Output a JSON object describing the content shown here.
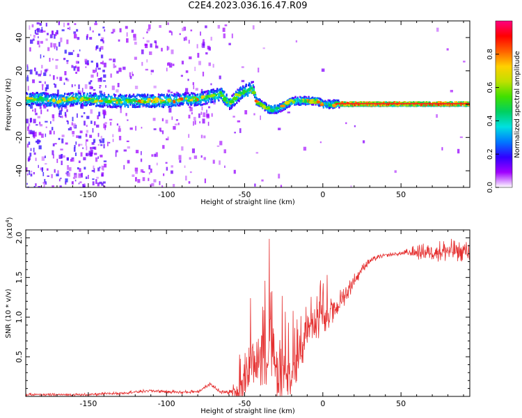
{
  "title": "C2E4.2023.036.16.47.R09",
  "chart_data": [
    {
      "type": "heatmap",
      "name": "spectrogram",
      "xlabel": "Height of straight line (km)",
      "ylabel": "Frequency (Hz)",
      "xlim": [
        -190,
        94
      ],
      "ylim": [
        -50,
        50
      ],
      "xticks": [
        -150,
        -100,
        -50,
        0,
        50
      ],
      "yticks": [
        -40,
        -20,
        0,
        20,
        40
      ],
      "grid": false,
      "ridge": {
        "x": [
          -190,
          -180,
          -170,
          -160,
          -150,
          -140,
          -130,
          -120,
          -110,
          -100,
          -90,
          -80,
          -75,
          -70,
          -65,
          -60,
          -55,
          -50,
          -47,
          -45,
          -43,
          -40,
          -35,
          -30,
          -25,
          -20,
          -15,
          -10,
          -5,
          0,
          5,
          10,
          20,
          40,
          60,
          80,
          94
        ],
        "freq": [
          3,
          3,
          2,
          3,
          3,
          2,
          2,
          2,
          2,
          2,
          3,
          3,
          4,
          5,
          6,
          0,
          5,
          8,
          9,
          10,
          2,
          0,
          -3,
          -3,
          -1,
          2,
          2,
          2,
          2,
          0,
          0,
          0,
          0,
          0,
          0,
          0,
          0
        ]
      },
      "colorbar": {
        "label": "Normalized spectral amplitude",
        "range": [
          0.0,
          1.0
        ],
        "ticks": [
          "0.0",
          "0.2",
          "0.4",
          "0.6",
          "0.8"
        ],
        "tick_values": [
          0.0,
          0.2,
          0.4,
          0.6,
          0.8
        ],
        "colors": [
          "#ffffff",
          "#a000ff",
          "#3000ff",
          "#0078ff",
          "#00e0e0",
          "#00d060",
          "#40e000",
          "#c0e000",
          "#ffd000",
          "#ff6000",
          "#ff0000",
          "#ff0080"
        ]
      }
    },
    {
      "type": "line",
      "name": "snr",
      "xlabel": "Height of straight line (km)",
      "ylabel": "SNR (10 * v/v)",
      "y_multiplier": "(x10",
      "y_multiplier_exp": "4",
      "y_multiplier_close": ")",
      "xlim": [
        -190,
        94
      ],
      "ylim": [
        0,
        2.1
      ],
      "xticks": [
        -150,
        -100,
        -50,
        0,
        50
      ],
      "yticks": [
        0.5,
        1.0,
        1.5,
        2.0
      ],
      "ytick_labels": [
        "0.5",
        "1.0",
        "1.5",
        "2.0"
      ],
      "color": "#e53030",
      "grid": false,
      "series": [
        {
          "name": "SNR",
          "envelope_x": [
            -190,
            -150,
            -130,
            -110,
            -100,
            -90,
            -80,
            -72,
            -65,
            -55,
            -50,
            -45,
            -40,
            -35,
            -30,
            -25,
            -20,
            -15,
            -10,
            -5,
            0,
            5,
            10,
            15,
            20,
            25,
            30,
            35,
            40,
            50,
            60,
            70,
            80,
            94
          ],
          "envelope_y": [
            0.02,
            0.02,
            0.04,
            0.07,
            0.06,
            0.05,
            0.06,
            0.15,
            0.05,
            0.05,
            0.12,
            0.38,
            0.45,
            0.5,
            0.35,
            0.25,
            0.2,
            0.5,
            0.75,
            0.88,
            0.95,
            1.05,
            1.15,
            1.3,
            1.45,
            1.6,
            1.7,
            1.75,
            1.78,
            1.8,
            1.81,
            1.82,
            1.82,
            1.82
          ],
          "noise_amp_x": [
            -190,
            -60,
            -55,
            -50,
            -40,
            -30,
            -20,
            -10,
            0,
            10,
            20,
            30,
            40,
            50,
            55,
            60,
            70,
            80,
            94
          ],
          "noise_amp_y": [
            0.02,
            0.03,
            0.2,
            0.35,
            0.55,
            0.65,
            0.4,
            0.3,
            0.25,
            0.2,
            0.12,
            0.05,
            0.03,
            0.03,
            0.08,
            0.12,
            0.15,
            0.2,
            0.15
          ]
        }
      ]
    }
  ]
}
